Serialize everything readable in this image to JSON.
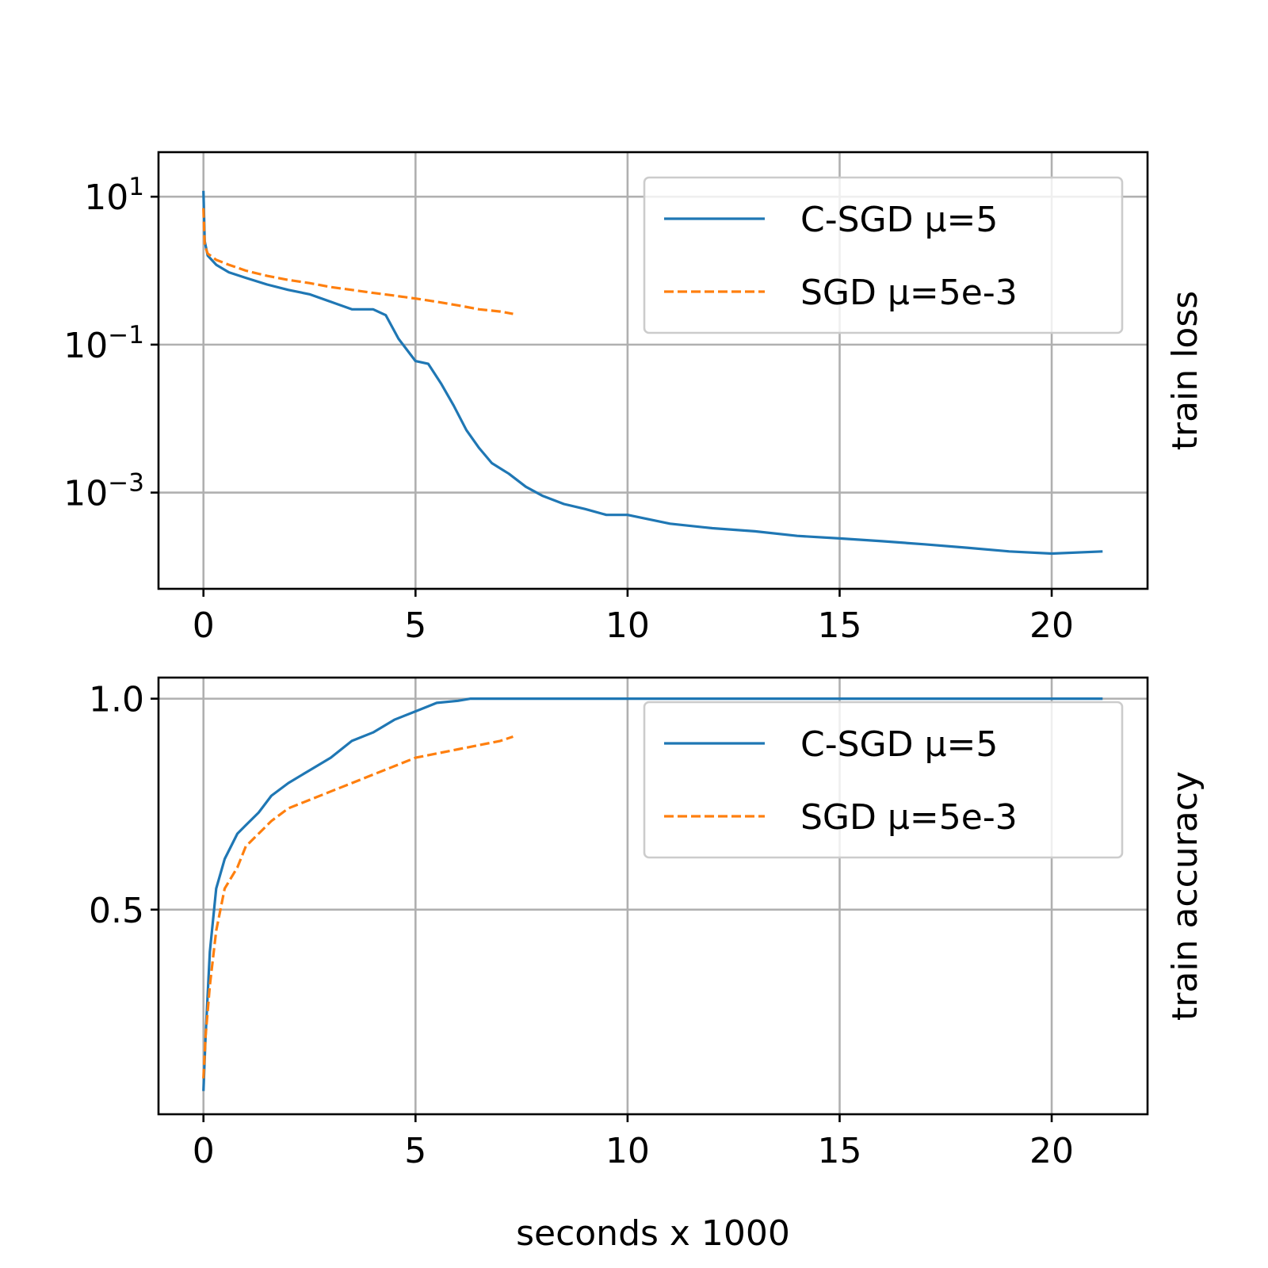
{
  "chart_data": [
    {
      "type": "line",
      "panel": "top",
      "xlabel": "",
      "ylabel": "train loss",
      "yscale": "log",
      "xlim": [
        -1.06,
        22.26
      ],
      "ylim": [
        5e-05,
        40
      ],
      "xticks": [
        {
          "value": 0,
          "label": "0"
        },
        {
          "value": 5,
          "label": "5"
        },
        {
          "value": 10,
          "label": "10"
        },
        {
          "value": 15,
          "label": "15"
        },
        {
          "value": 20,
          "label": "20"
        }
      ],
      "yticks": [
        {
          "value": 10,
          "base": "10",
          "exp": "1"
        },
        {
          "value": 0.1,
          "base": "10",
          "exp": "−1"
        },
        {
          "value": 0.001,
          "base": "10",
          "exp": "−3"
        }
      ],
      "grid": true,
      "legend_position": "upper-right",
      "series": [
        {
          "name": "C-SGD μ=5",
          "color": "#1f77b4",
          "dash": "solid",
          "x": [
            0,
            0.03,
            0.1,
            0.3,
            0.6,
            1.0,
            1.5,
            2.0,
            2.5,
            3.0,
            3.5,
            4.0,
            4.3,
            4.6,
            5.0,
            5.3,
            5.6,
            5.9,
            6.2,
            6.5,
            6.8,
            7.2,
            7.6,
            8.0,
            8.5,
            9.0,
            9.5,
            10.0,
            11.0,
            12.0,
            13.0,
            14.0,
            15.0,
            16.0,
            17.0,
            18.0,
            19.0,
            20.0,
            21.2
          ],
          "y": [
            12,
            2.5,
            1.6,
            1.2,
            0.95,
            0.8,
            0.65,
            0.55,
            0.48,
            0.38,
            0.3,
            0.3,
            0.25,
            0.12,
            0.06,
            0.055,
            0.03,
            0.015,
            0.007,
            0.004,
            0.0025,
            0.0018,
            0.0012,
            0.0009,
            0.0007,
            0.0006,
            0.0005,
            0.0005,
            0.00038,
            0.00033,
            0.0003,
            0.00026,
            0.00024,
            0.00022,
            0.0002,
            0.00018,
            0.00016,
            0.00015,
            0.00016
          ]
        },
        {
          "name": "SGD μ=5e-3",
          "color": "#ff7f0e",
          "dash": "dashed",
          "x": [
            0,
            0.03,
            0.1,
            0.3,
            0.6,
            1.0,
            1.5,
            2.0,
            2.5,
            3.0,
            3.5,
            4.0,
            4.5,
            5.0,
            5.5,
            6.0,
            6.5,
            7.0,
            7.3
          ],
          "y": [
            7,
            2.2,
            1.7,
            1.4,
            1.2,
            1.0,
            0.85,
            0.75,
            0.68,
            0.6,
            0.55,
            0.5,
            0.46,
            0.42,
            0.38,
            0.34,
            0.3,
            0.28,
            0.26
          ]
        }
      ]
    },
    {
      "type": "line",
      "panel": "bottom",
      "xlabel": "seconds x 1000",
      "ylabel": "train accuracy",
      "yscale": "linear",
      "xlim": [
        -1.06,
        22.26
      ],
      "ylim": [
        0.015,
        1.05
      ],
      "xticks": [
        {
          "value": 0,
          "label": "0"
        },
        {
          "value": 5,
          "label": "5"
        },
        {
          "value": 10,
          "label": "10"
        },
        {
          "value": 15,
          "label": "15"
        },
        {
          "value": 20,
          "label": "20"
        }
      ],
      "yticks": [
        {
          "value": 1.0,
          "label": "1.0"
        },
        {
          "value": 0.5,
          "label": "0.5"
        }
      ],
      "grid": true,
      "legend_position": "upper-right",
      "series": [
        {
          "name": "C-SGD μ=5",
          "color": "#1f77b4",
          "dash": "solid",
          "x": [
            0,
            0.05,
            0.15,
            0.3,
            0.5,
            0.8,
            1.0,
            1.3,
            1.6,
            2.0,
            2.5,
            3.0,
            3.5,
            4.0,
            4.5,
            5.0,
            5.5,
            6.0,
            6.3,
            8.0,
            10.0,
            15.0,
            20.0,
            21.2
          ],
          "y": [
            0.07,
            0.2,
            0.4,
            0.55,
            0.62,
            0.68,
            0.7,
            0.73,
            0.77,
            0.8,
            0.83,
            0.86,
            0.9,
            0.92,
            0.95,
            0.97,
            0.99,
            0.995,
            1.0,
            1.0,
            1.0,
            1.0,
            1.0,
            1.0
          ]
        },
        {
          "name": "SGD μ=5e-3",
          "color": "#ff7f0e",
          "dash": "dashed",
          "x": [
            0,
            0.05,
            0.15,
            0.3,
            0.5,
            0.8,
            1.0,
            1.3,
            1.6,
            2.0,
            2.5,
            3.0,
            3.5,
            4.0,
            4.5,
            5.0,
            5.5,
            6.0,
            6.5,
            7.0,
            7.3
          ],
          "y": [
            0.1,
            0.2,
            0.32,
            0.45,
            0.55,
            0.6,
            0.65,
            0.68,
            0.71,
            0.74,
            0.76,
            0.78,
            0.8,
            0.82,
            0.84,
            0.86,
            0.87,
            0.88,
            0.89,
            0.9,
            0.91
          ]
        }
      ]
    }
  ]
}
